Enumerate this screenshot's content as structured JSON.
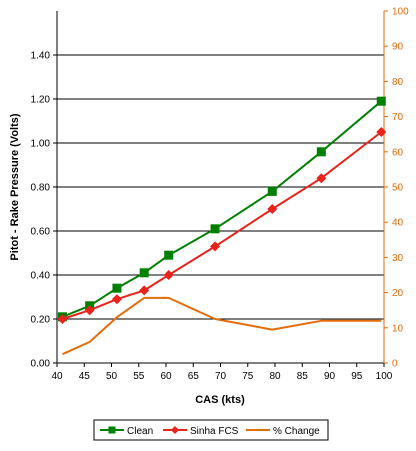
{
  "chart_data": {
    "type": "line",
    "xlabel": "CAS (kts)",
    "ylabel": "Pitot - Rake Pressure (Volts)",
    "xlim": [
      40,
      100
    ],
    "ylim": [
      0,
      1.6
    ],
    "y2lim": [
      0,
      100
    ],
    "x_ticks": [
      "40",
      "45",
      "50",
      "55",
      "60",
      "65",
      "70",
      "75",
      "80",
      "85",
      "90",
      "95",
      "100"
    ],
    "y_ticks": [
      "0.00",
      "0.20",
      "0.40",
      "0.60",
      "0.80",
      "1.00",
      "1.20",
      "1.40"
    ],
    "y2_ticks": [
      "0",
      "10",
      "20",
      "30",
      "40",
      "50",
      "60",
      "70",
      "80",
      "90",
      "100"
    ],
    "grid": "horizontal",
    "legend_position": "bottom",
    "series": [
      {
        "name": "Clean",
        "axis": "left",
        "color": "#008000",
        "marker": "square",
        "x": [
          41,
          46,
          51,
          56,
          60.5,
          69,
          79.5,
          88.5,
          99.5
        ],
        "y": [
          0.21,
          0.26,
          0.34,
          0.41,
          0.49,
          0.61,
          0.78,
          0.96,
          1.19
        ]
      },
      {
        "name": "Sinha FCS",
        "axis": "left",
        "color": "#e8231c",
        "marker": "diamond",
        "x": [
          41,
          46,
          51,
          56,
          60.5,
          69,
          79.5,
          88.5,
          99.5
        ],
        "y": [
          0.2,
          0.24,
          0.29,
          0.33,
          0.4,
          0.53,
          0.7,
          0.84,
          1.05
        ]
      },
      {
        "name": "% Change",
        "axis": "right",
        "color": "#e36c09",
        "marker": "none",
        "x": [
          41,
          46,
          51,
          56,
          60.5,
          69,
          79.5,
          88.5,
          99.5
        ],
        "y": [
          2.5,
          6,
          13,
          18.5,
          18.5,
          12.5,
          9.5,
          12,
          12
        ]
      }
    ]
  }
}
